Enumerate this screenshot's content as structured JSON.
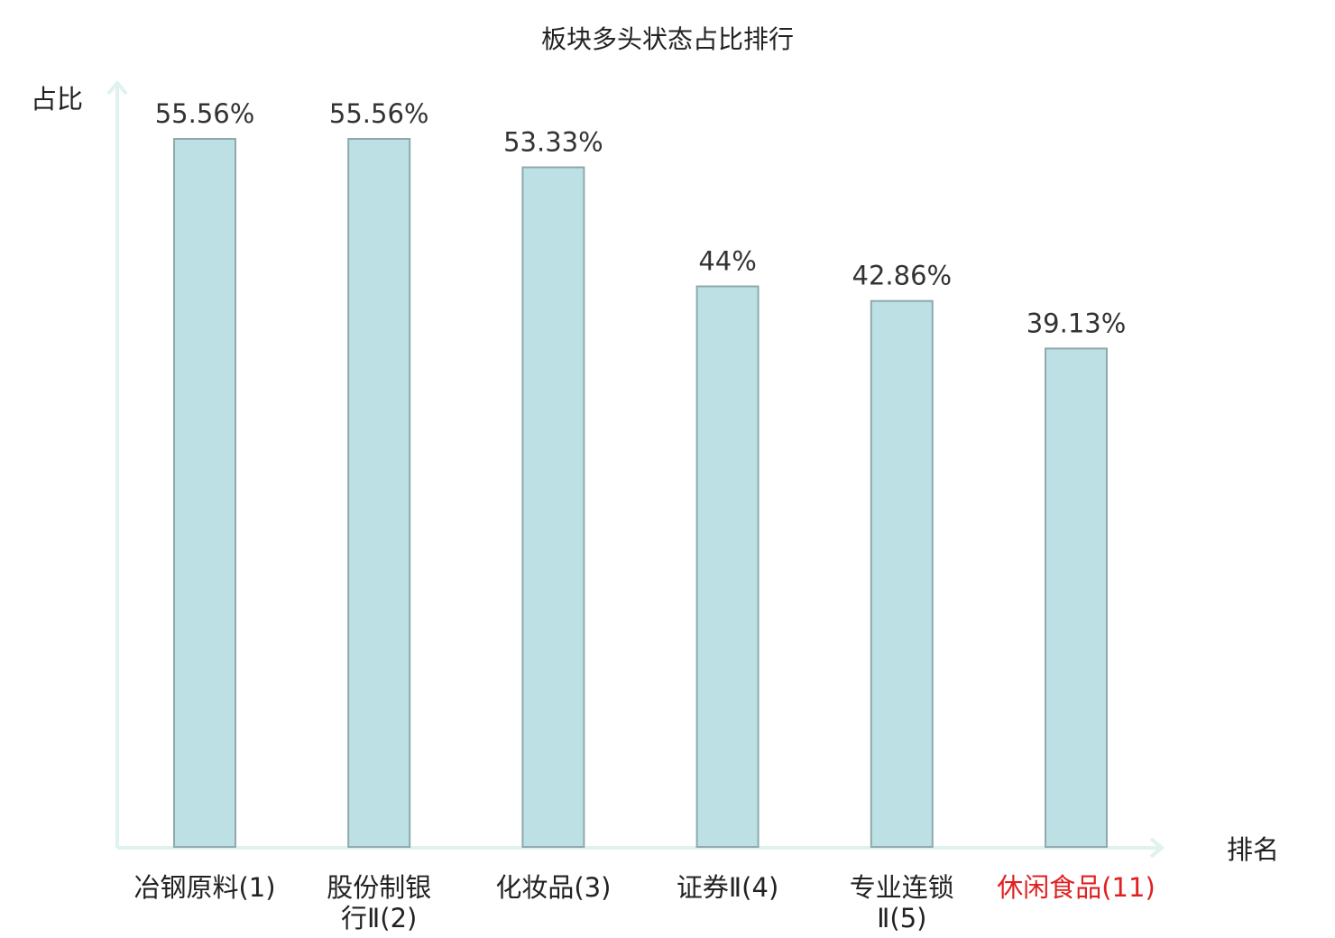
{
  "chart_data": {
    "type": "bar",
    "title": "板块多头状态占比排行",
    "xlabel": "排名",
    "ylabel": "占比",
    "ylim": [
      0,
      60
    ],
    "grid": false,
    "categories": [
      [
        "冶钢原料(1)"
      ],
      [
        "股份制银",
        "行Ⅱ(2)"
      ],
      [
        "化妆品(3)"
      ],
      [
        "证券Ⅱ(4)"
      ],
      [
        "专业连锁",
        "Ⅱ(5)"
      ],
      [
        "休闲食品(11)"
      ]
    ],
    "values": [
      55.56,
      55.56,
      53.33,
      44,
      42.86,
      39.13
    ],
    "value_labels": [
      "55.56%",
      "55.56%",
      "53.33%",
      "44%",
      "42.86%",
      "39.13%"
    ],
    "highlight_index": 5
  },
  "colors": {
    "bar_fill": "#bce0e3",
    "bar_stroke": "#8fa9ac",
    "axis": "#dff2ef",
    "highlight_text": "#e02020",
    "text": "#222222"
  }
}
